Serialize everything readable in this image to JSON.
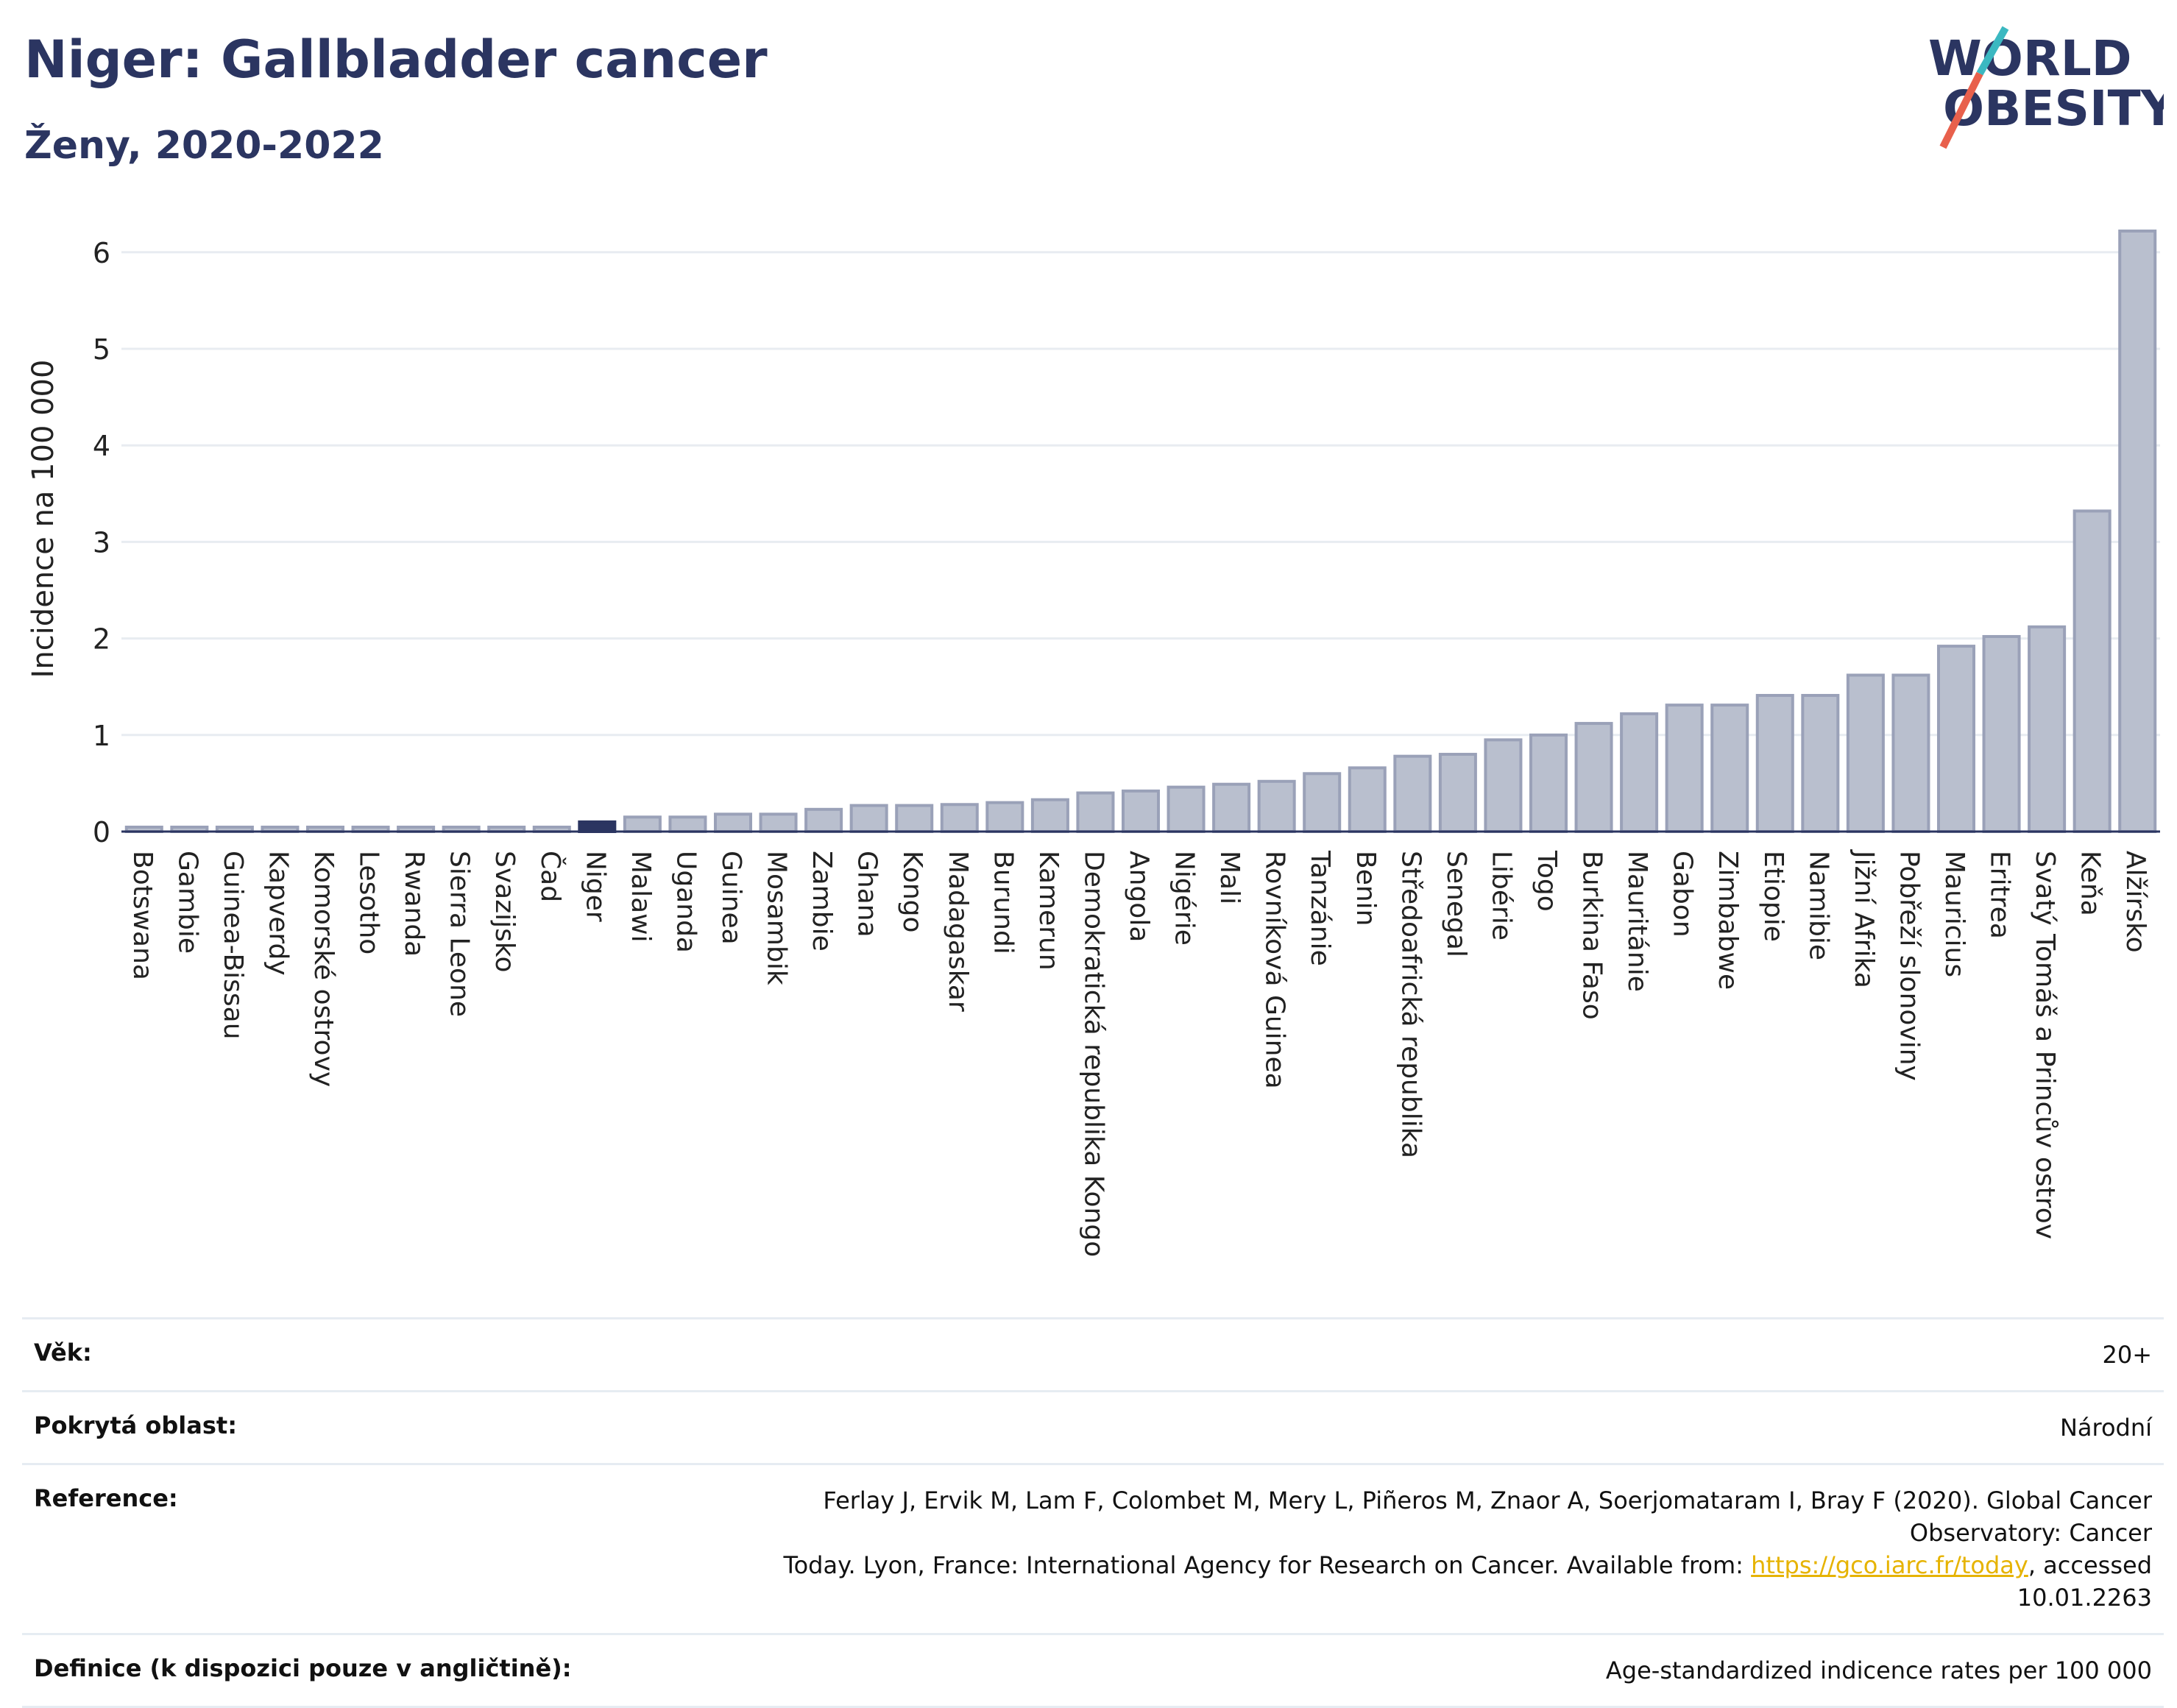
{
  "header": {
    "title": "Niger: Gallbladder cancer",
    "subtitle": "Ženy, 2020-2022"
  },
  "logo": {
    "line1": "WORLD",
    "line2": "OBESITY"
  },
  "chart_data": {
    "type": "bar",
    "ylabel": "Incidence na 100 000",
    "xlabel": "",
    "ylim": [
      0,
      6.5
    ],
    "yticks": [
      0,
      1,
      2,
      3,
      4,
      5,
      6
    ],
    "grid": true,
    "highlight": "Niger",
    "colors": {
      "bar": "#b9bfce",
      "bar_edge": "#9aa1b8",
      "highlight": "#2b3561",
      "grid": "#e8ecf1"
    },
    "categories": [
      "Botswana",
      "Gambie",
      "Guinea-Bissau",
      "Kapverdy",
      "Komorské ostrovy",
      "Lesotho",
      "Rwanda",
      "Sierra Leone",
      "Svazijsko",
      "Čad",
      "Niger",
      "Malawi",
      "Uganda",
      "Guinea",
      "Mosambik",
      "Zambie",
      "Ghana",
      "Kongo",
      "Madagaskar",
      "Burundi",
      "Kamerun",
      "Demokratická republika Kongo",
      "Angola",
      "Nigérie",
      "Mali",
      "Rovníková Guinea",
      "Tanzánie",
      "Benin",
      "Středoafrická republika",
      "Senegal",
      "Libérie",
      "Togo",
      "Burkina Faso",
      "Mauritánie",
      "Gabon",
      "Zimbabwe",
      "Etiopie",
      "Namibie",
      "Jižní Afrika",
      "Pobřeží slonoviny",
      "Mauricius",
      "Eritrea",
      "Svatý Tomáš a Princův ostrov",
      "Keňa",
      "Alžírsko"
    ],
    "values": [
      0.0,
      0.0,
      0.0,
      0.0,
      0.0,
      0.0,
      0.0,
      0.0,
      0.0,
      0.0,
      0.1,
      0.15,
      0.15,
      0.18,
      0.18,
      0.23,
      0.27,
      0.27,
      0.28,
      0.3,
      0.33,
      0.4,
      0.42,
      0.46,
      0.49,
      0.52,
      0.6,
      0.66,
      0.78,
      0.8,
      0.95,
      1.0,
      1.12,
      1.22,
      1.31,
      1.31,
      1.41,
      1.41,
      1.62,
      1.62,
      1.92,
      2.02,
      2.12,
      3.32,
      6.22
    ]
  },
  "info": {
    "age_label": "Věk:",
    "age_value": "20+",
    "area_label": "Pokrytá oblast:",
    "area_value": "Národní",
    "ref_label": "Reference:",
    "ref_text_1": "Ferlay J, Ervik M, Lam F, Colombet M, Mery L, Piñeros M, Znaor A, Soerjomataram I, Bray F (2020). Global Cancer Observatory: Cancer",
    "ref_text_2": "Today. Lyon, France: International Agency for Research on Cancer. Available from: ",
    "ref_link": "https://gco.iarc.fr/today",
    "ref_text_3": ", accessed 10.01.2263",
    "def_label": "Definice (k dispozici pouze v angličtině):",
    "def_value": "Age-standardized indicence rates per 100 000"
  }
}
